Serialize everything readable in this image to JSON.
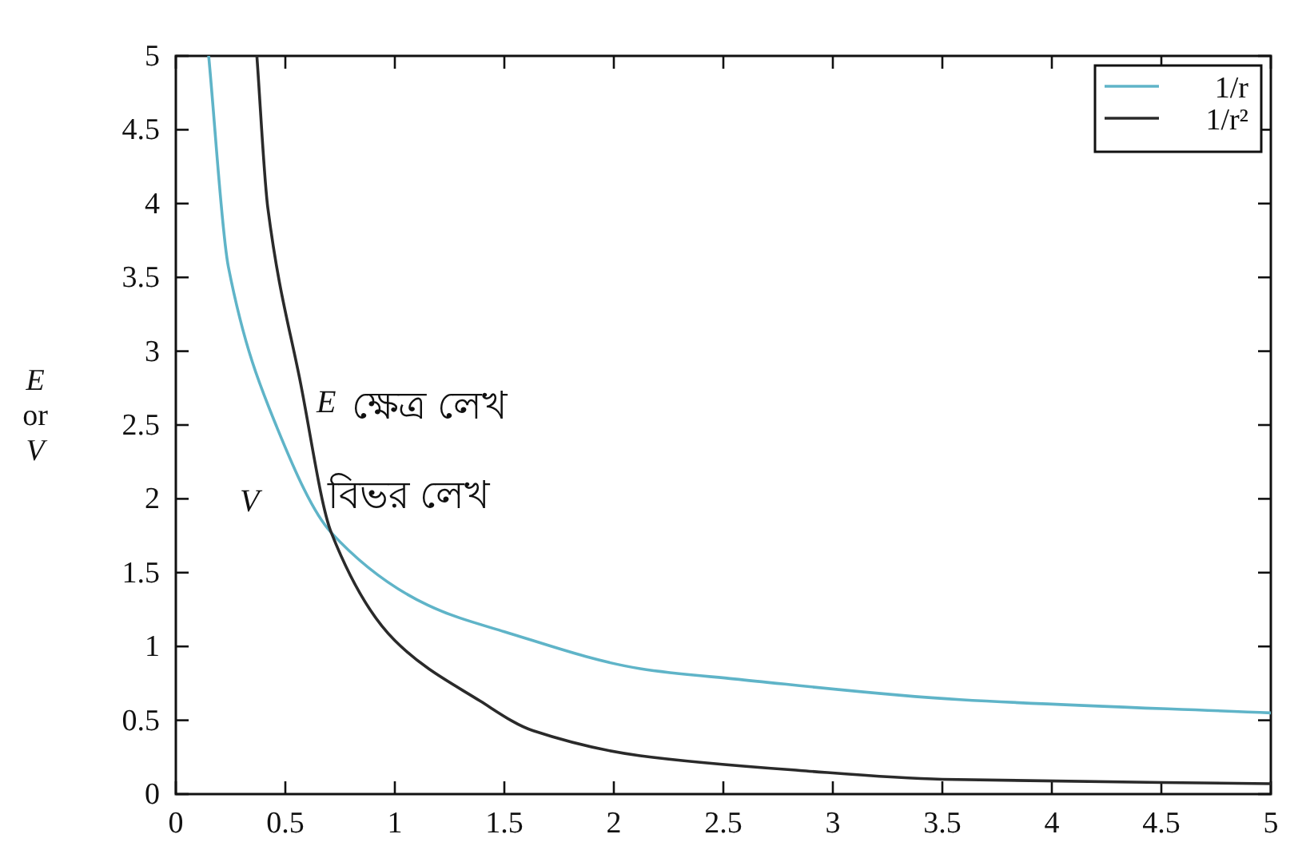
{
  "chart_data": {
    "type": "line",
    "ylabel": "E or V",
    "xlim": [
      0,
      5
    ],
    "ylim": [
      0,
      5
    ],
    "xticks": [
      0,
      0.5,
      1,
      1.5,
      2,
      2.5,
      3,
      3.5,
      4,
      4.5,
      5
    ],
    "yticks": [
      0,
      0.5,
      1,
      1.5,
      2,
      2.5,
      3,
      3.5,
      4,
      4.5,
      5
    ],
    "series": [
      {
        "name": "1/r",
        "color": "#5fb4c8",
        "x": [
          0.15,
          0.24,
          0.46,
          0.71,
          1.15,
          1.5,
          2.12,
          2.55,
          3.58,
          5
        ],
        "values": [
          5,
          3.57,
          2.49,
          1.77,
          1.28,
          1.1,
          0.85,
          0.78,
          0.64,
          0.55
        ]
      },
      {
        "name": "1/r²",
        "color": "#2a2a2a",
        "x": [
          0.37,
          0.42,
          0.57,
          0.71,
          1.0,
          1.39,
          1.63,
          2.12,
          2.85,
          3.5,
          5
        ],
        "values": [
          5,
          3.97,
          2.78,
          1.77,
          1.04,
          0.63,
          0.43,
          0.26,
          0.16,
          0.1,
          0.07
        ]
      }
    ],
    "annotations": [
      "E",
      "ক্ষেত্র লেখ",
      "V",
      "বিভর লেখ"
    ],
    "legend": "top right",
    "grid": false
  }
}
